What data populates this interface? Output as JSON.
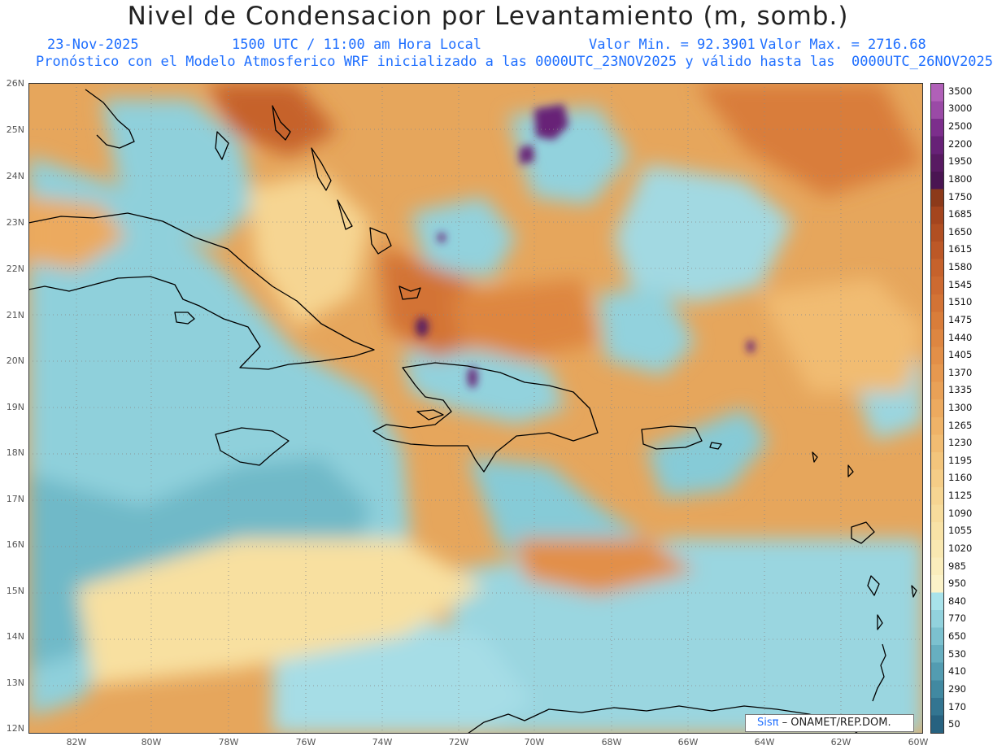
{
  "header": {
    "title": "Nivel de Condensacion por Levantamiento (m, somb.)",
    "date": "23-Nov-2025",
    "time": "1500 UTC / 11:00 am Hora Local",
    "min_label": "Valor Min. = 92.3901",
    "max_label": "Valor Max. = 2716.68",
    "model_line": "Pronóstico con el Modelo Atmosferico WRF inicializado a las 0000UTC_23NOV2025 y válido hasta las  0000UTC_26NOV2025"
  },
  "axes": {
    "lat_labels": [
      "26N",
      "25N",
      "24N",
      "23N",
      "22N",
      "21N",
      "20N",
      "19N",
      "18N",
      "17N",
      "16N",
      "15N",
      "14N",
      "13N",
      "12N"
    ],
    "lon_labels": [
      "82W",
      "80W",
      "78W",
      "76W",
      "74W",
      "72W",
      "70W",
      "68W",
      "66W",
      "64W",
      "62W",
      "60W"
    ]
  },
  "colorbar": {
    "labels": [
      "3500",
      "3000",
      "2500",
      "2200",
      "1950",
      "1800",
      "1750",
      "1685",
      "1650",
      "1615",
      "1580",
      "1545",
      "1510",
      "1475",
      "1440",
      "1405",
      "1370",
      "1335",
      "1300",
      "1265",
      "1230",
      "1195",
      "1160",
      "1125",
      "1090",
      "1055",
      "1020",
      "985",
      "950",
      "840",
      "770",
      "650",
      "530",
      "410",
      "290",
      "170",
      "50"
    ],
    "colors": [
      "#b060b8",
      "#9a4aa6",
      "#7c2e8c",
      "#672177",
      "#581a62",
      "#4a1552",
      "#8c3a1a",
      "#a4451e",
      "#b14f22",
      "#bc5827",
      "#c6622c",
      "#cd6a31",
      "#d37335",
      "#d97d3a",
      "#de8641",
      "#e28f48",
      "#e6984f",
      "#e9a157",
      "#ecaa5f",
      "#efb368",
      "#f1bc72",
      "#f3c57c",
      "#f5cd87",
      "#f6d592",
      "#f7dc9c",
      "#f8e2a6",
      "#f9e8b1",
      "#faedbc",
      "#fbf2c8",
      "#a8e2ea",
      "#92d2dd",
      "#7cc1cf",
      "#67afc0",
      "#539cb1",
      "#4189a1",
      "#337591",
      "#276280"
    ]
  },
  "credit": {
    "brand": "Sisπ",
    "text": "– ONAMET/REP.DOM."
  }
}
